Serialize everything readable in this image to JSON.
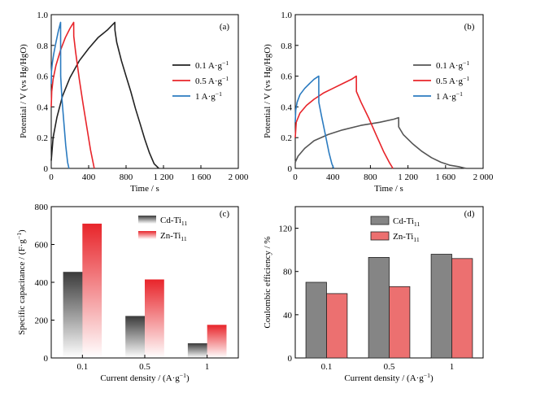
{
  "chart_data": [
    {
      "id": "a",
      "type": "line",
      "panel_label": "(a)",
      "xlabel": "Time / s",
      "ylabel": "Potential / V (vs Hg/HgO)",
      "xlim": [
        0,
        2000
      ],
      "ylim": [
        0,
        1.0
      ],
      "xticks": [
        0,
        400,
        800,
        1200,
        1600,
        2000
      ],
      "xtick_labels": [
        "0",
        "400",
        "800",
        "1 200",
        "1 600",
        "2 000"
      ],
      "yticks": [
        0,
        0.2,
        0.4,
        0.6,
        0.8,
        1.0
      ],
      "ytick_labels": [
        "0",
        "0.2",
        "0.4",
        "0.6",
        "0.8",
        "1.0"
      ],
      "legend_position": "right",
      "series": [
        {
          "name": "0.1 A·g⁻¹",
          "color": "#222222",
          "x": [
            0,
            20,
            60,
            120,
            200,
            300,
            400,
            500,
            600,
            680,
            681,
            700,
            750,
            800,
            850,
            900,
            950,
            1000,
            1050,
            1100,
            1150
          ],
          "y": [
            0.05,
            0.2,
            0.33,
            0.47,
            0.59,
            0.7,
            0.78,
            0.85,
            0.9,
            0.95,
            0.9,
            0.82,
            0.7,
            0.6,
            0.5,
            0.39,
            0.29,
            0.19,
            0.1,
            0.03,
            0
          ]
        },
        {
          "name": "0.5 A·g⁻¹",
          "color": "#e8242a",
          "x": [
            0,
            5,
            20,
            50,
            100,
            150,
            200,
            240,
            241,
            260,
            300,
            340,
            380,
            420,
            460
          ],
          "y": [
            0.4,
            0.5,
            0.58,
            0.67,
            0.77,
            0.85,
            0.91,
            0.95,
            0.86,
            0.76,
            0.58,
            0.42,
            0.27,
            0.12,
            0
          ]
        },
        {
          "name": "1 A·g⁻¹",
          "color": "#2b7bc0",
          "x": [
            0,
            3,
            10,
            25,
            50,
            75,
            100,
            101,
            115,
            135,
            155,
            175,
            190
          ],
          "y": [
            0.55,
            0.63,
            0.68,
            0.74,
            0.82,
            0.89,
            0.95,
            0.6,
            0.45,
            0.3,
            0.15,
            0.04,
            0
          ]
        }
      ]
    },
    {
      "id": "b",
      "type": "line",
      "panel_label": "(b)",
      "xlabel": "Time / s",
      "ylabel": "Potential / V (vs Hg/HgO)",
      "xlim": [
        0,
        2000
      ],
      "ylim": [
        0,
        1.0
      ],
      "xticks": [
        0,
        400,
        800,
        1200,
        1600,
        2000
      ],
      "xtick_labels": [
        "0",
        "400",
        "800",
        "1 200",
        "1 600",
        "2 000"
      ],
      "yticks": [
        0,
        0.2,
        0.4,
        0.6,
        0.8,
        1.0
      ],
      "ytick_labels": [
        "0",
        "0.2",
        "0.4",
        "0.6",
        "0.8",
        "1.0"
      ],
      "legend_position": "right",
      "series": [
        {
          "name": "0.1 A·g⁻¹",
          "color": "#555555",
          "x": [
            0,
            30,
            100,
            200,
            350,
            500,
            700,
            900,
            1050,
            1100,
            1101,
            1150,
            1250,
            1350,
            1450,
            1550,
            1650,
            1750,
            1820
          ],
          "y": [
            0.04,
            0.08,
            0.13,
            0.18,
            0.22,
            0.25,
            0.28,
            0.3,
            0.32,
            0.33,
            0.27,
            0.22,
            0.16,
            0.11,
            0.07,
            0.04,
            0.02,
            0.01,
            0
          ]
        },
        {
          "name": "0.5 A·g⁻¹",
          "color": "#e8242a",
          "x": [
            0,
            10,
            50,
            120,
            200,
            300,
            400,
            500,
            600,
            650,
            651,
            700,
            780,
            860,
            940,
            1000,
            1040
          ],
          "y": [
            0.2,
            0.3,
            0.36,
            0.41,
            0.45,
            0.49,
            0.52,
            0.55,
            0.58,
            0.6,
            0.5,
            0.43,
            0.33,
            0.22,
            0.11,
            0.04,
            0
          ]
        },
        {
          "name": "1 A·g⁻¹",
          "color": "#2b7bc0",
          "x": [
            0,
            5,
            20,
            50,
            100,
            150,
            200,
            250,
            251,
            280,
            320,
            360,
            390,
            410
          ],
          "y": [
            0.3,
            0.38,
            0.43,
            0.48,
            0.52,
            0.55,
            0.58,
            0.6,
            0.43,
            0.34,
            0.22,
            0.1,
            0.03,
            0
          ]
        }
      ]
    },
    {
      "id": "c",
      "type": "bar",
      "panel_label": "(c)",
      "xlabel": "Current density / (A·g⁻¹)",
      "ylabel": "Specific capacitance / (F·g⁻¹)",
      "categories": [
        "0.1",
        "0.5",
        "1"
      ],
      "ylim": [
        0,
        800
      ],
      "yticks": [
        0,
        200,
        400,
        600,
        800
      ],
      "ytick_labels": [
        "0",
        "200",
        "400",
        "600",
        "800"
      ],
      "legend_position": "top-center",
      "series": [
        {
          "name": "Cd-Ti₁₁",
          "color": "#3a3a3a",
          "values": [
            455,
            222,
            78
          ]
        },
        {
          "name": "Zn-Ti₁₁",
          "color": "#e8242a",
          "values": [
            710,
            415,
            175
          ]
        }
      ]
    },
    {
      "id": "d",
      "type": "bar",
      "panel_label": "(d)",
      "xlabel": "Current density / (A·g⁻¹)",
      "ylabel": "Coulombic efficiency / %",
      "categories": [
        "0.1",
        "0.5",
        "1"
      ],
      "ylim": [
        0,
        140
      ],
      "yticks": [
        0,
        40,
        80,
        120
      ],
      "ytick_labels": [
        "0",
        "40",
        "80",
        "120"
      ],
      "legend_position": "top-left",
      "series": [
        {
          "name": "Cd-Ti₁₁",
          "color": "#858585",
          "values": [
            70,
            93,
            96
          ]
        },
        {
          "name": "Zn-Ti₁₁",
          "color": "#ec7070",
          "values": [
            59.5,
            66,
            92
          ]
        }
      ]
    }
  ]
}
